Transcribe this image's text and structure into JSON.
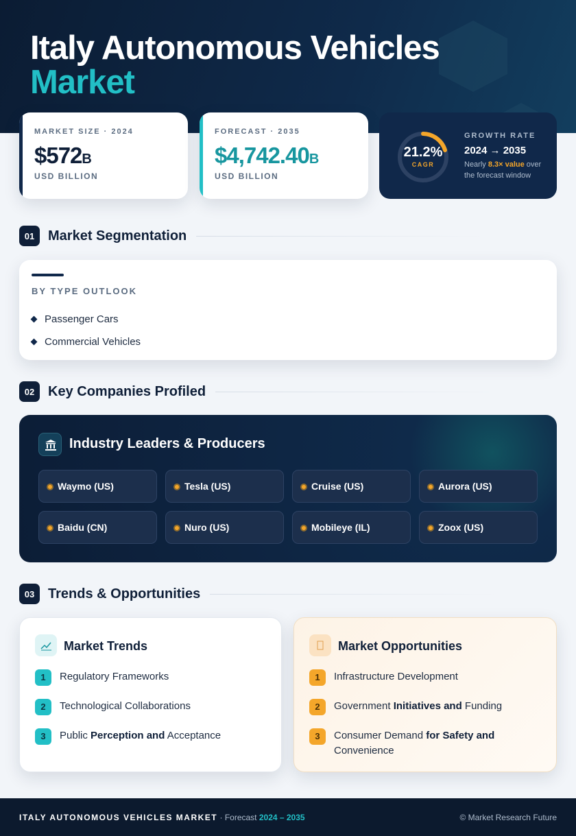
{
  "header": {
    "title_line1": "Italy Autonomous Vehicles",
    "title_line2": "Market"
  },
  "stats": [
    {
      "label": "MARKET SIZE · 2024",
      "value": "$572",
      "unit": "B",
      "note": "USD BILLION"
    },
    {
      "label": "FORECAST · 2035",
      "value": "$4,742.40",
      "unit": "B",
      "note": "USD BILLION"
    }
  ],
  "growth": {
    "cagr": "21.2%",
    "cagr_label": "CAGR",
    "label": "GROWTH RATE",
    "period": "2024 → 2035",
    "note_before": "Nearly ",
    "note_highlight": "8.3× value",
    "note_after": " over the forecast window"
  },
  "sections": [
    {
      "number": "01",
      "title": "Market Segmentation"
    },
    {
      "number": "02",
      "title": "Key Companies Profiled"
    },
    {
      "number": "03",
      "title": "Trends & Opportunities"
    }
  ],
  "segmentation": {
    "heading": "BY TYPE OUTLOOK",
    "items": [
      "Passenger Cars",
      "Commercial Vehicles"
    ]
  },
  "companies": {
    "heading": "Industry Leaders & Producers",
    "items": [
      "Waymo (US)",
      "Tesla (US)",
      "Cruise (US)",
      "Aurora (US)",
      "Baidu (CN)",
      "Nuro (US)",
      "Mobileye (IL)",
      "Zoox (US)"
    ]
  },
  "trends": {
    "title": "Market Trends",
    "items": [
      {
        "number": "1",
        "text": [
          "Regulatory Frameworks"
        ]
      },
      {
        "number": "2",
        "text": [
          "Technological Collaborations"
        ]
      },
      {
        "number": "3",
        "text": [
          "Public ",
          "Perception and",
          " Acceptance"
        ]
      }
    ]
  },
  "opportunities": {
    "title": "Market Opportunities",
    "items": [
      {
        "number": "1",
        "text": [
          "Infrastructure Development"
        ]
      },
      {
        "number": "2",
        "text": [
          "Government ",
          "Initiatives and",
          " Funding"
        ]
      },
      {
        "number": "3",
        "text": [
          "Consumer Demand ",
          "for Safety and",
          " Convenience"
        ]
      }
    ]
  },
  "footer": {
    "title": "ITALY AUTONOMOUS VEHICLES MARKET",
    "forecast": "· Forecast",
    "period": "2024 – 2035",
    "credit": "© Market Research Future"
  }
}
